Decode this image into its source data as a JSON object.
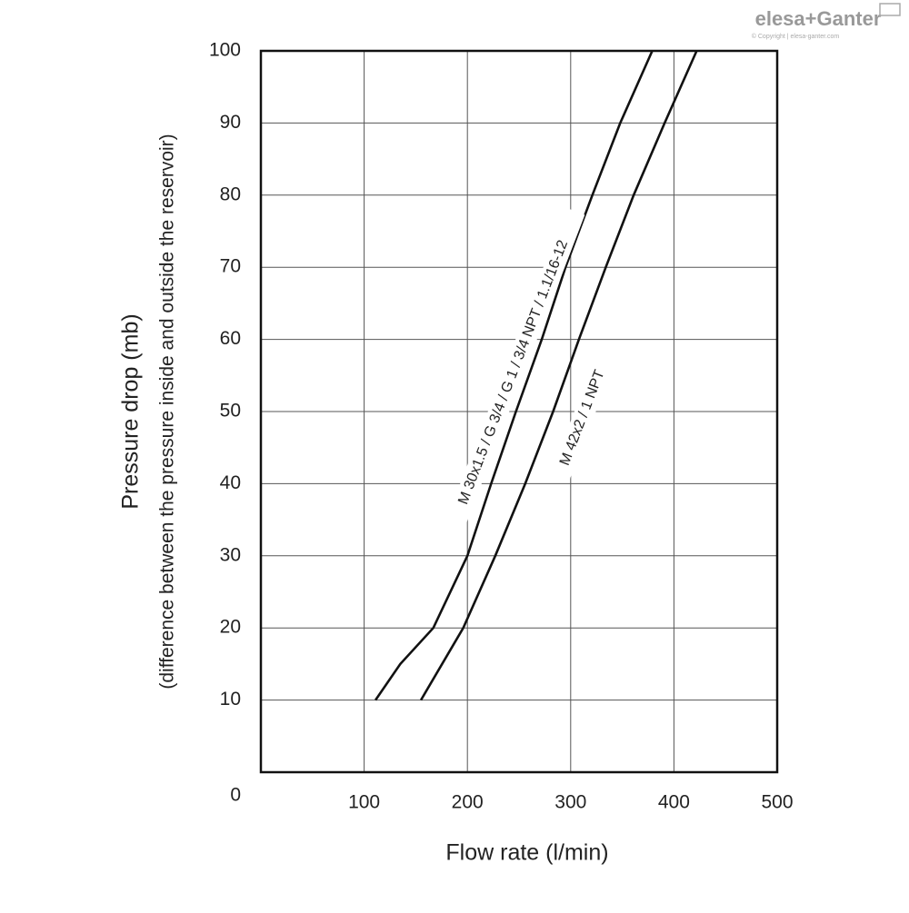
{
  "brand": "elesa+Ganter",
  "brand_note": "© Copyright | elesa-ganter.com",
  "chart_data": {
    "type": "line",
    "xlabel": "Flow rate (l/min)",
    "ylabel": "Pressure drop (mb)",
    "ylabel_note": "(difference between the pressure inside and outside the reservoir)",
    "xlim": [
      0,
      500
    ],
    "xticks": [
      100,
      200,
      300,
      400,
      500
    ],
    "ylim": [
      0,
      100
    ],
    "yticks": [
      0,
      10,
      20,
      30,
      40,
      50,
      60,
      70,
      80,
      90,
      100
    ],
    "grid": true,
    "series": [
      {
        "name": "M 30x1.5 / G 3/4 / G 1 / 3/4 NPT / 1.1/16-12",
        "color": "#111111",
        "x": [
          111,
          135,
          167,
          200,
          223,
          247,
          272,
          295,
          321,
          348,
          379
        ],
        "values": [
          10,
          15,
          20,
          30,
          40,
          50,
          60,
          70,
          80,
          90,
          100
        ]
      },
      {
        "name": "M 42x2 / 1 NPT",
        "color": "#111111",
        "x": [
          155,
          196,
          227,
          256,
          283,
          308,
          334,
          361,
          391,
          422
        ],
        "values": [
          10,
          20,
          30,
          40,
          50,
          60,
          70,
          80,
          90,
          100
        ]
      }
    ]
  }
}
